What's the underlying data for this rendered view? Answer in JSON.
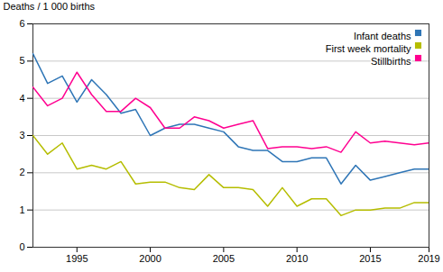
{
  "chart_data": {
    "type": "line",
    "ylabel": "Deaths / 1 000 births",
    "x": [
      1992,
      1993,
      1994,
      1995,
      1996,
      1997,
      1998,
      1999,
      2000,
      2001,
      2002,
      2003,
      2004,
      2005,
      2006,
      2007,
      2008,
      2009,
      2010,
      2011,
      2012,
      2013,
      2014,
      2015,
      2016,
      2017,
      2018,
      2019
    ],
    "series": [
      {
        "name": "Infant deaths",
        "color": "#2e75b6",
        "values": [
          5.2,
          4.4,
          4.6,
          3.9,
          4.5,
          4.1,
          3.6,
          3.7,
          3.0,
          3.2,
          3.3,
          3.3,
          3.2,
          3.1,
          2.7,
          2.6,
          2.6,
          2.3,
          2.3,
          2.4,
          2.4,
          1.7,
          2.2,
          1.8,
          1.9,
          2.0,
          2.1,
          2.1
        ]
      },
      {
        "name": "First week mortality",
        "color": "#b5bd00",
        "values": [
          3.0,
          2.5,
          2.8,
          2.1,
          2.2,
          2.1,
          2.3,
          1.7,
          1.75,
          1.75,
          1.6,
          1.55,
          1.95,
          1.6,
          1.6,
          1.55,
          1.1,
          1.6,
          1.1,
          1.3,
          1.3,
          0.85,
          1.0,
          1.0,
          1.05,
          1.05,
          1.2,
          1.2
        ]
      },
      {
        "name": "Stillbirths",
        "color": "#ff0090",
        "values": [
          4.3,
          3.8,
          4.0,
          4.7,
          4.1,
          3.65,
          3.65,
          4.0,
          3.75,
          3.2,
          3.2,
          3.5,
          3.4,
          3.2,
          3.3,
          3.4,
          2.65,
          2.7,
          2.7,
          2.65,
          2.7,
          2.55,
          3.1,
          2.8,
          2.85,
          2.8,
          2.75,
          2.8
        ]
      }
    ],
    "xlim": [
      1992,
      2019
    ],
    "xticks": [
      1995,
      2000,
      2005,
      2010,
      2015,
      2019
    ],
    "ylim": [
      0,
      6
    ],
    "yticks": [
      0,
      1,
      2,
      3,
      4,
      5,
      6
    ],
    "grid": true,
    "legend": "upper right"
  }
}
